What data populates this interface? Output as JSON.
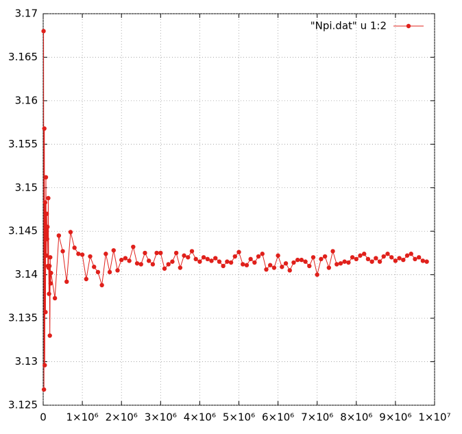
{
  "chart_data": {
    "type": "line",
    "x": [
      10000,
      20000,
      30000,
      40000,
      50000,
      60000,
      70000,
      80000,
      90000,
      100000,
      110000,
      120000,
      130000,
      140000,
      150000,
      160000,
      170000,
      180000,
      190000,
      200000,
      300000,
      400000,
      500000,
      600000,
      700000,
      800000,
      900000,
      1000000,
      1100000,
      1200000,
      1300000,
      1400000,
      1500000,
      1600000,
      1700000,
      1800000,
      1900000,
      2000000,
      2100000,
      2200000,
      2300000,
      2400000,
      2500000,
      2600000,
      2700000,
      2800000,
      2900000,
      3000000,
      3100000,
      3200000,
      3300000,
      3400000,
      3500000,
      3600000,
      3700000,
      3800000,
      3900000,
      4000000,
      4100000,
      4200000,
      4300000,
      4400000,
      4500000,
      4600000,
      4700000,
      4800000,
      4900000,
      5000000,
      5100000,
      5200000,
      5300000,
      5400000,
      5500000,
      5600000,
      5700000,
      5800000,
      5900000,
      6000000,
      6100000,
      6200000,
      6300000,
      6400000,
      6500000,
      6600000,
      6700000,
      6800000,
      6900000,
      7000000,
      7100000,
      7200000,
      7300000,
      7400000,
      7500000,
      7600000,
      7700000,
      7800000,
      7900000,
      8000000,
      8100000,
      8200000,
      8300000,
      8400000,
      8500000,
      8600000,
      8700000,
      8800000,
      8900000,
      9000000,
      9100000,
      9200000,
      9300000,
      9400000,
      9500000,
      9600000,
      9700000,
      9800000
    ],
    "series": [
      {
        "name": "\"Npi.dat\" u 1:2",
        "color": "#e0201b",
        "values": [
          3.168,
          3.1268,
          3.1568,
          3.1296,
          3.1483,
          3.1357,
          3.1512,
          3.1422,
          3.147,
          3.1441,
          3.1455,
          3.141,
          3.1488,
          3.1408,
          3.1378,
          3.141,
          3.133,
          3.142,
          3.139,
          3.1402,
          3.1373,
          3.1445,
          3.1427,
          3.1392,
          3.1449,
          3.1431,
          3.1424,
          3.1423,
          3.1395,
          3.1421,
          3.1409,
          3.1403,
          3.1388,
          3.1424,
          3.1403,
          3.1428,
          3.1405,
          3.1417,
          3.1419,
          3.1416,
          3.1432,
          3.1413,
          3.1412,
          3.1425,
          3.1416,
          3.1412,
          3.1425,
          3.1425,
          3.1407,
          3.1412,
          3.1415,
          3.1425,
          3.1408,
          3.1422,
          3.142,
          3.1427,
          3.1418,
          3.1415,
          3.142,
          3.1418,
          3.1416,
          3.1419,
          3.1415,
          3.141,
          3.1415,
          3.1414,
          3.1421,
          3.1426,
          3.1412,
          3.1411,
          3.1418,
          3.1414,
          3.1421,
          3.1424,
          3.1406,
          3.1411,
          3.1408,
          3.1422,
          3.1409,
          3.1413,
          3.1405,
          3.1414,
          3.1417,
          3.1417,
          3.1415,
          3.141,
          3.142,
          3.14,
          3.1418,
          3.1421,
          3.1408,
          3.1427,
          3.1412,
          3.1413,
          3.1415,
          3.1414,
          3.142,
          3.1418,
          3.1422,
          3.1424,
          3.1418,
          3.1415,
          3.1419,
          3.1415,
          3.1421,
          3.1424,
          3.142,
          3.1416,
          3.1419,
          3.1417,
          3.1422,
          3.1424,
          3.1418,
          3.142,
          3.1416,
          3.1415
        ]
      }
    ],
    "xlim": [
      0,
      10000000
    ],
    "xticks": [
      0,
      {
        "value": 1000000,
        "label": "1×10⁶"
      },
      {
        "value": 2000000,
        "label": "2×10⁶"
      },
      {
        "value": 3000000,
        "label": "3×10⁶"
      },
      {
        "value": 4000000,
        "label": "4×10⁶"
      },
      {
        "value": 5000000,
        "label": "5×10⁶"
      },
      {
        "value": 6000000,
        "label": "6×10⁶"
      },
      {
        "value": 7000000,
        "label": "7×10⁶"
      },
      {
        "value": 8000000,
        "label": "8×10⁶"
      },
      {
        "value": 9000000,
        "label": "9×10⁶"
      },
      {
        "value": 10000000,
        "label": "1×10⁷"
      }
    ],
    "ylim": [
      3.125,
      3.17
    ],
    "yticks": [
      3.125,
      3.13,
      3.135,
      3.14,
      3.145,
      3.15,
      3.155,
      3.16,
      3.165,
      3.17
    ],
    "grid": true,
    "legend": "top-right"
  }
}
